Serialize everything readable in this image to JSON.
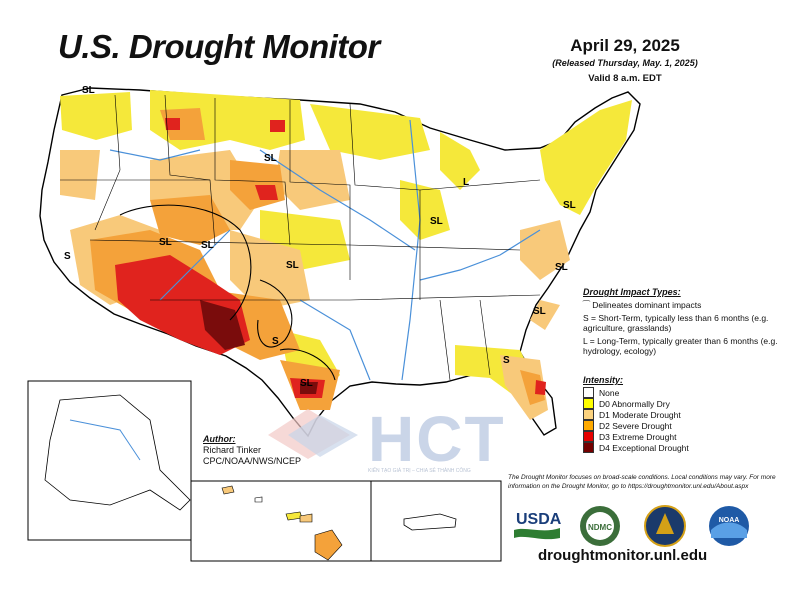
{
  "header": {
    "title": "U.S. Drought Monitor",
    "date": "April 29, 2025",
    "released": "(Released Thursday, May. 1, 2025)",
    "valid": "Valid 8 a.m. EDT"
  },
  "map_labels": [
    "SL",
    "SL",
    "SL",
    "SL",
    "S",
    "SL",
    "SL",
    "L",
    "SL",
    "SL",
    "S",
    "SL",
    "S",
    "SL",
    "S"
  ],
  "impact": {
    "heading": "Drought Impact Types:",
    "line_desc": "Delineates dominant impacts",
    "s_desc": "S = Short-Term, typically less than 6 months (e.g. agriculture, grasslands)",
    "l_desc": "L = Long-Term, typically greater than 6 months (e.g. hydrology, ecology)"
  },
  "legend": {
    "heading": "Intensity:",
    "items": [
      {
        "label": "None",
        "color": "#ffffff"
      },
      {
        "label": "D0 Abnormally Dry",
        "color": "#ffff00"
      },
      {
        "label": "D1 Moderate Drought",
        "color": "#fcd37f"
      },
      {
        "label": "D2 Severe Drought",
        "color": "#ffaa00"
      },
      {
        "label": "D3 Extreme Drought",
        "color": "#e60000"
      },
      {
        "label": "D4 Exceptional Drought",
        "color": "#730000"
      }
    ]
  },
  "author": {
    "heading": "Author:",
    "name": "Richard Tinker",
    "org": "CPC/NOAA/NWS/NCEP"
  },
  "note": "The Drought Monitor focuses on broad-scale conditions. Local conditions may vary. For more information on the Drought Monitor, go to https://droughtmonitor.unl.edu/About.aspx",
  "url": "droughtmonitor.unl.edu",
  "logos": {
    "usda": "USDA",
    "ndmc": "NDMC",
    "noaa": "NOAA"
  },
  "watermark": {
    "text": "HCT",
    "tagline": "KIẾN TẠO GIÁ TRỊ – CHIA SẺ THÀNH CÔNG"
  },
  "colors": {
    "none": "#ffffff",
    "d0": "#ffff00",
    "d1": "#fcd37f",
    "d2": "#ffaa00",
    "d3": "#e60000",
    "d4": "#730000",
    "rivers": "#4a90d9"
  }
}
